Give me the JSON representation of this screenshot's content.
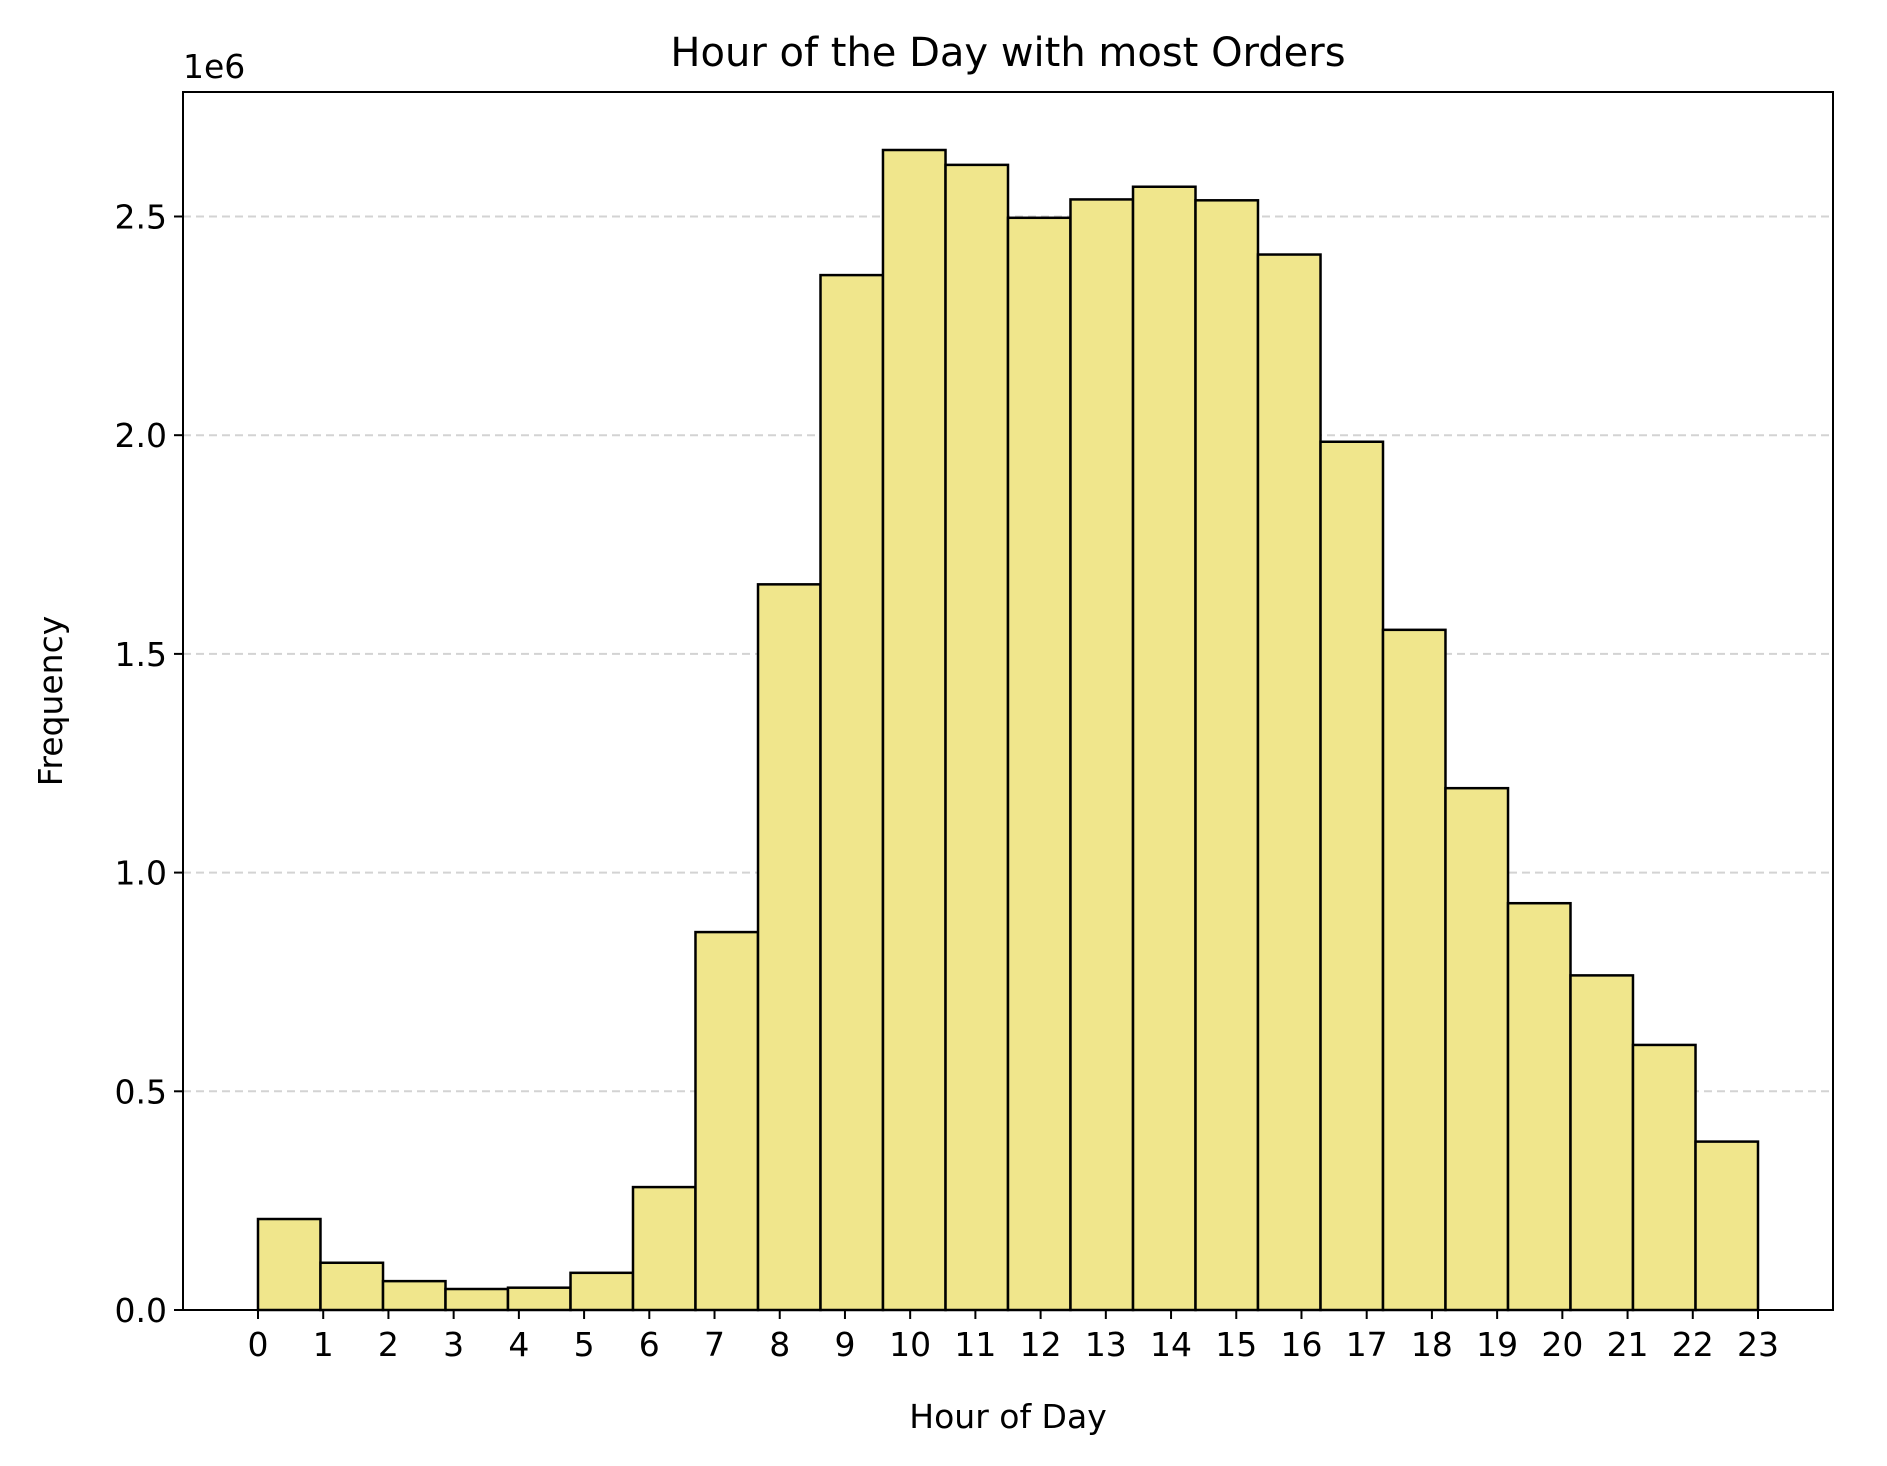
{
  "chart_data": {
    "type": "bar",
    "title": "Hour of the Day with most Orders",
    "xlabel": "Hour of Day",
    "ylabel": "Frequency",
    "y_offset_label": "1e6",
    "categories": [
      "0",
      "1",
      "2",
      "3",
      "4",
      "5",
      "6",
      "7",
      "8",
      "9",
      "10",
      "11",
      "12",
      "13",
      "14",
      "15",
      "16",
      "17",
      "18",
      "19",
      "20",
      "21",
      "22",
      "23"
    ],
    "bin_edges": [
      0,
      0.958,
      1.917,
      2.875,
      3.833,
      4.792,
      5.75,
      6.708,
      7.667,
      8.625,
      9.583,
      10.542,
      11.5,
      12.458,
      13.417,
      14.375,
      15.333,
      16.292,
      17.25,
      18.208,
      19.167,
      20.125,
      21.083,
      22.042,
      23
    ],
    "values": [
      208000,
      108000,
      66000,
      48000,
      51000,
      85000,
      281000,
      864000,
      1659000,
      2366000,
      2652000,
      2618000,
      2497000,
      2539000,
      2568000,
      2537000,
      2413000,
      1985000,
      1555000,
      1193000,
      930000,
      765000,
      606000,
      385000
    ],
    "x_ticks": [
      0,
      1,
      2,
      3,
      4,
      5,
      6,
      7,
      8,
      9,
      10,
      11,
      12,
      13,
      14,
      15,
      16,
      17,
      18,
      19,
      20,
      21,
      22,
      23
    ],
    "y_ticks": [
      0,
      500000,
      1000000,
      1500000,
      2000000,
      2500000
    ],
    "y_tick_labels": [
      "0.0",
      "0.5",
      "1.0",
      "1.5",
      "2.0",
      "2.5"
    ],
    "xlim": [
      -1.15,
      24.15
    ],
    "ylim": [
      0,
      2784600
    ],
    "grid": {
      "axis": "y",
      "style": "dashed",
      "color": "#d3d3d3"
    },
    "legend": "none",
    "colors": {
      "bar_fill": "#f0e68c",
      "bar_edge": "#000000"
    }
  }
}
